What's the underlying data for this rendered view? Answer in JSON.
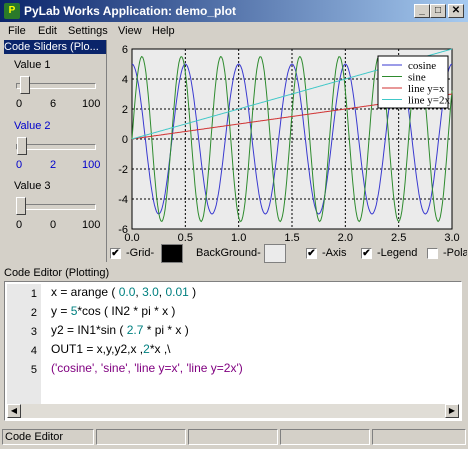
{
  "window": {
    "title": "PyLab Works Application: demo_plot",
    "minimize": "_",
    "maximize": "□",
    "close": "✕"
  },
  "menu": [
    "File",
    "Edit",
    "Settings",
    "View",
    "Help"
  ],
  "sliders": {
    "header": "Code Sliders (Plo...",
    "items": [
      {
        "label": "Value 1",
        "min": "0",
        "value": "6",
        "max": "100",
        "fraction": 0.06
      },
      {
        "label": "Value 2",
        "min": "0",
        "value": "2",
        "max": "100",
        "fraction": 0.02
      },
      {
        "label": "Value 3",
        "min": "0",
        "value": "0",
        "max": "100",
        "fraction": 0.0
      }
    ]
  },
  "chart_data": {
    "type": "line",
    "xlim": [
      0,
      3
    ],
    "ylim": [
      -6,
      6
    ],
    "xticks": [
      "0.0",
      "0.5",
      "1.0",
      "1.5",
      "2.0",
      "2.5",
      "3.0"
    ],
    "yticks": [
      "6",
      "4",
      "2",
      "0",
      "-2",
      "-4",
      "-6"
    ],
    "grid": true,
    "legend_position": "top-right",
    "series": [
      {
        "name": "cosine",
        "color": "#3a3ad0",
        "expr": "5*cos(4*pi*x)"
      },
      {
        "name": "sine",
        "color": "#2e8b2e",
        "expr": "5.5*sin(5.4*pi*x)"
      },
      {
        "name": "line y=x",
        "color": "#d03030",
        "expr": "x"
      },
      {
        "name": "line y=2x",
        "color": "#40c8c8",
        "expr": "2x"
      }
    ]
  },
  "plot_controls": {
    "grid_label": "-Grid-",
    "grid_checked": "✔",
    "grid_color": "#000000",
    "background_label": "BackGround-",
    "background_color": "#ebebeb",
    "axis_label": "-Axis",
    "axis_checked": "✔",
    "legend_label": "-Legend",
    "legend_checked": "✔",
    "polar_label": "-Pola"
  },
  "code_editor": {
    "header": "Code Editor (Plotting)",
    "line_numbers": [
      "1",
      "2",
      "3",
      "4",
      "5"
    ]
  },
  "statusbar": {
    "text": "Code Editor"
  }
}
